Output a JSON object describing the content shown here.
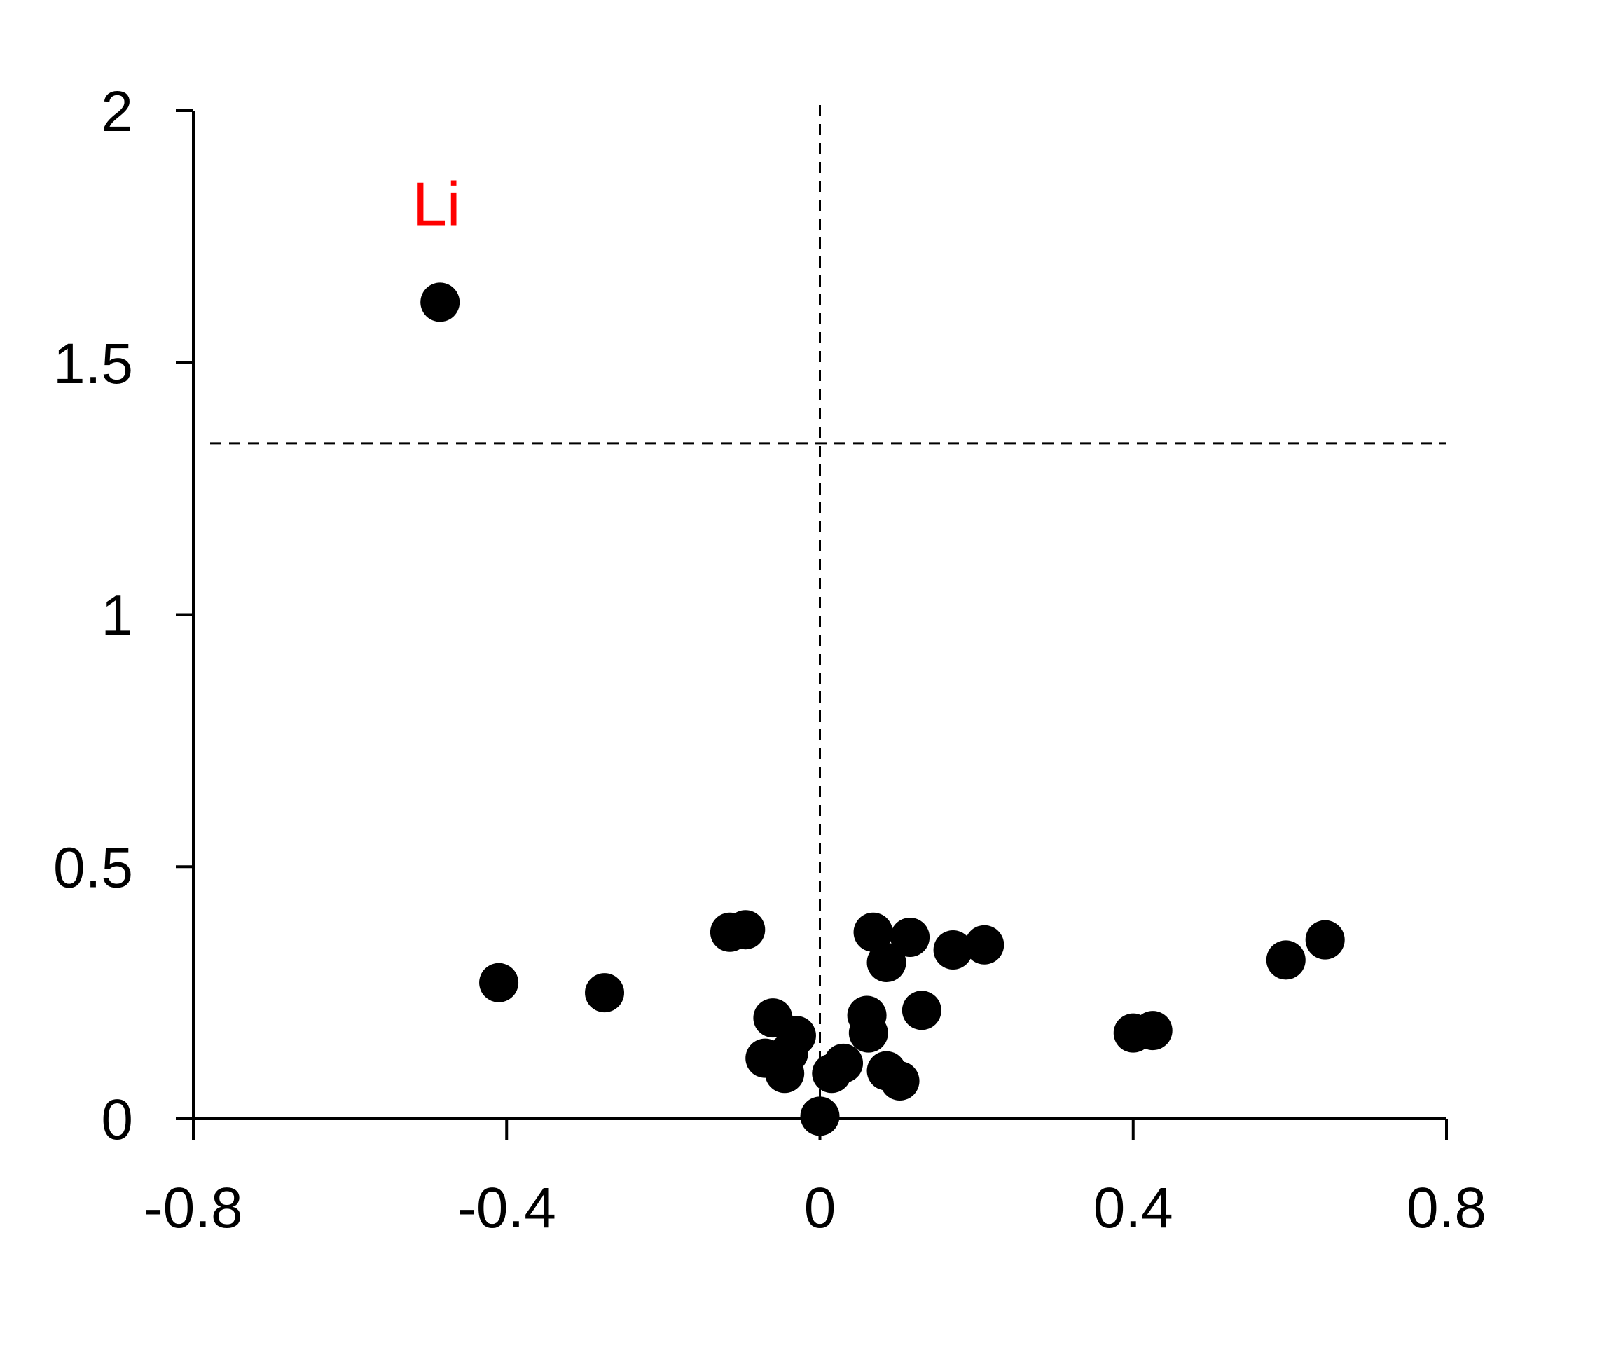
{
  "chart_data": {
    "type": "scatter",
    "title": "",
    "xlabel": "",
    "ylabel": "",
    "xlim": [
      -0.8,
      0.8
    ],
    "ylim": [
      0,
      2
    ],
    "x_ticks": [
      "-0.8",
      "-0.4",
      "0",
      "0.4",
      "0.8"
    ],
    "y_ticks": [
      "0",
      "0.5",
      "1",
      "1.5",
      "2"
    ],
    "threshold_x": 0,
    "threshold_y": 1.34,
    "marker_color": "#000000",
    "highlight_color": "#ff0000",
    "points": [
      {
        "x": -0.485,
        "y": 1.62,
        "label": "Li"
      },
      {
        "x": -0.41,
        "y": 0.27
      },
      {
        "x": -0.275,
        "y": 0.25
      },
      {
        "x": -0.115,
        "y": 0.37
      },
      {
        "x": -0.095,
        "y": 0.375
      },
      {
        "x": -0.06,
        "y": 0.2
      },
      {
        "x": -0.03,
        "y": 0.165
      },
      {
        "x": -0.07,
        "y": 0.12
      },
      {
        "x": -0.045,
        "y": 0.09
      },
      {
        "x": -0.04,
        "y": 0.13
      },
      {
        "x": 0.0,
        "y": 0.005
      },
      {
        "x": 0.015,
        "y": 0.09
      },
      {
        "x": 0.03,
        "y": 0.11
      },
      {
        "x": 0.06,
        "y": 0.205
      },
      {
        "x": 0.062,
        "y": 0.17
      },
      {
        "x": 0.068,
        "y": 0.37
      },
      {
        "x": 0.085,
        "y": 0.31
      },
      {
        "x": 0.085,
        "y": 0.095
      },
      {
        "x": 0.102,
        "y": 0.075
      },
      {
        "x": 0.115,
        "y": 0.36
      },
      {
        "x": 0.13,
        "y": 0.215
      },
      {
        "x": 0.17,
        "y": 0.335
      },
      {
        "x": 0.21,
        "y": 0.345
      },
      {
        "x": 0.4,
        "y": 0.17
      },
      {
        "x": 0.425,
        "y": 0.175
      },
      {
        "x": 0.595,
        "y": 0.315
      },
      {
        "x": 0.645,
        "y": 0.355
      }
    ]
  }
}
